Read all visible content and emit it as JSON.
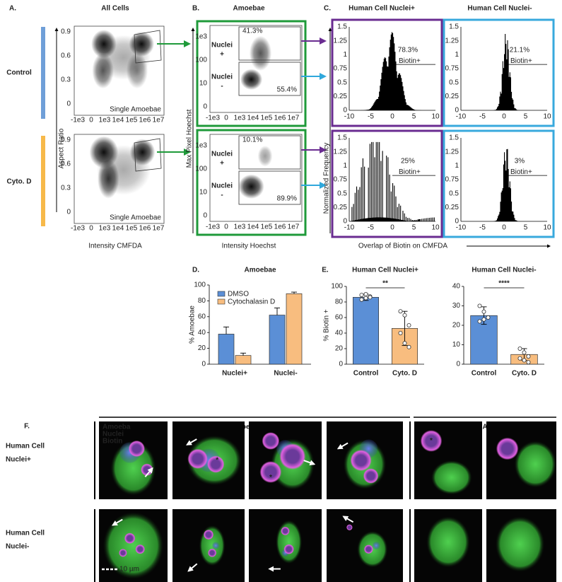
{
  "panel_a": {
    "label": "A.",
    "title": "All Cells",
    "rows": [
      "Control",
      "Cyto. D"
    ],
    "y_axis_label": "Aspect Ratio",
    "x_axis_label": "Intensity CMFDA",
    "yticks": [
      "0.9",
      "0.6",
      "0.3",
      "0"
    ],
    "xticks": [
      "-1e3",
      "0",
      "1e3",
      "1e4",
      "1e5",
      "1e6",
      "1e7"
    ],
    "gate_label": "Single Amoebae"
  },
  "panel_b": {
    "label": "B.",
    "title": "Amoebae",
    "y_axis_label": "Max Pixel Hoechst",
    "x_axis_label": "Intensity Hoechst",
    "yticks": [
      "1e3",
      "100",
      "10",
      "0"
    ],
    "xticks": [
      "-1e3",
      "0",
      "1e3",
      "1e4",
      "1e5",
      "1e6",
      "1e7"
    ],
    "gates": [
      {
        "name": "Nuclei",
        "sign": "+"
      },
      {
        "name": "Nuclei",
        "sign": "-"
      }
    ],
    "percentages": [
      [
        "41.3%",
        "55.4%"
      ],
      [
        "10.1%",
        "89.9%"
      ]
    ]
  },
  "panel_c": {
    "label": "C.",
    "columns": [
      "Human Cell Nuclei+",
      "Human Cell Nuclei-"
    ],
    "y_axis_label": "Normalized Frequency",
    "x_axis_label": "Overlap of Biotin on CMFDA",
    "gate_label": "Biotin+",
    "percentages": [
      [
        "78.3%",
        "21.1%"
      ],
      [
        "25%",
        "3%"
      ]
    ],
    "xticks": [
      "-10",
      "-5",
      "0",
      "5",
      "10"
    ],
    "yticks": [
      "1.5",
      "1.25",
      "1",
      "0.75",
      "0.5",
      "0.25",
      "0"
    ]
  },
  "chart_data": [
    {
      "type": "bar",
      "label": "D.",
      "title": "Amoebae",
      "y_label": "% Amoebae",
      "categories": [
        "Nuclei+",
        "Nuclei-"
      ],
      "series": [
        {
          "name": "DMSO",
          "color": "#5b8fd6",
          "values": [
            38,
            62
          ],
          "errors": [
            9,
            9
          ]
        },
        {
          "name": "Cytochalasin D",
          "color": "#f8bd7f",
          "values": [
            11,
            89
          ],
          "errors": [
            3,
            2
          ]
        }
      ],
      "ylim": [
        0,
        100
      ],
      "yticks": [
        0,
        20,
        40,
        60,
        80,
        100
      ]
    },
    {
      "type": "dotbar",
      "label": "E.",
      "title": "Human Cell Nuclei+",
      "y_label": "% Biotin +",
      "categories": [
        "Control",
        "Cyto. D"
      ],
      "colors": [
        "#5b8fd6",
        "#f8bd7f"
      ],
      "values": [
        86,
        46
      ],
      "errors": [
        4,
        22
      ],
      "points": [
        [
          83,
          85,
          87,
          89,
          90,
          86
        ],
        [
          68,
          63,
          50,
          40,
          27,
          22
        ]
      ],
      "significance": "**",
      "ylim": [
        0,
        100
      ],
      "yticks": [
        0,
        20,
        40,
        60,
        80,
        100
      ]
    },
    {
      "type": "dotbar",
      "title": "Human Cell Nuclei-",
      "categories": [
        "Control",
        "Cyto. D"
      ],
      "colors": [
        "#5b8fd6",
        "#f8bd7f"
      ],
      "values": [
        25,
        5
      ],
      "errors": [
        4.5,
        3
      ],
      "points": [
        [
          30,
          27,
          24,
          22,
          23
        ],
        [
          8,
          6,
          4,
          3,
          2,
          1
        ]
      ],
      "significance": "****",
      "ylim": [
        0,
        40
      ],
      "yticks": [
        0,
        10,
        20,
        30,
        40
      ]
    }
  ],
  "panel_f": {
    "label": "F.",
    "groups": [
      "Biotin+ Amoebae",
      "Biotin- Amoebae"
    ],
    "rows": [
      [
        "Human Cell",
        "Nuclei+"
      ],
      [
        "Human Cell",
        "Nuclei-"
      ]
    ],
    "channels": [
      {
        "name": "Amoeba",
        "color": "#3ddc3d"
      },
      {
        "name": "Nuclei",
        "color": "#5a78f0"
      },
      {
        "name": "Biotin",
        "color": "#e050e0"
      }
    ],
    "scale_bar": "10 µm",
    "asterisk": "*"
  }
}
